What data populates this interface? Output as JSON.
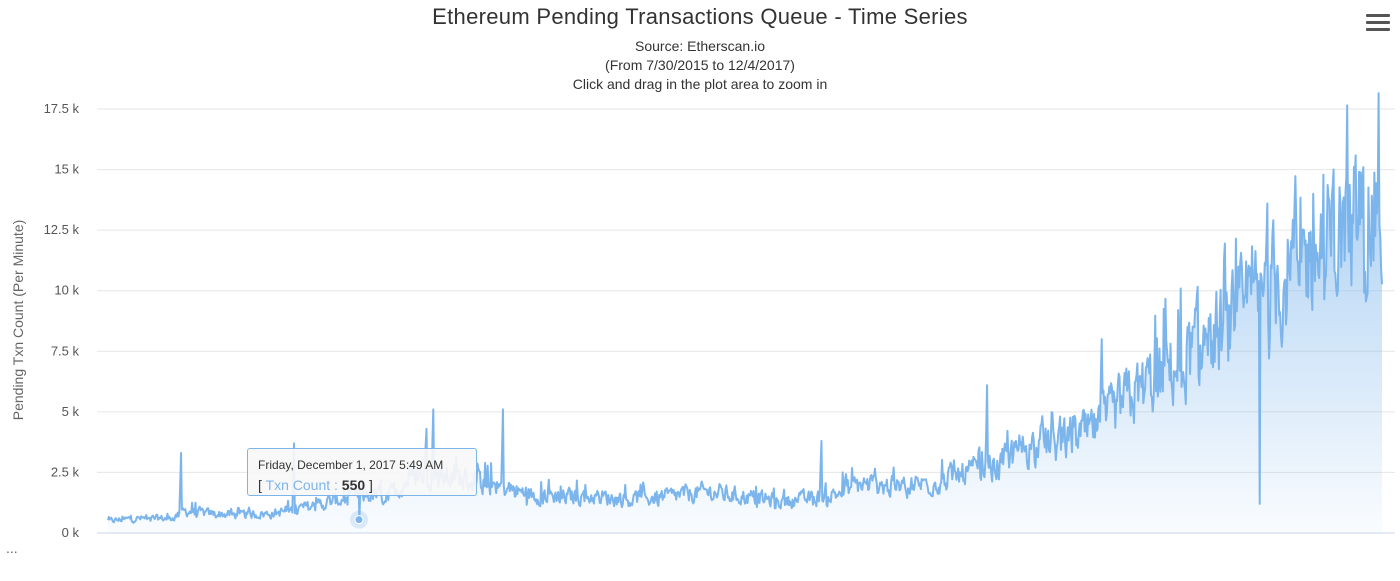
{
  "chart_data": {
    "type": "area",
    "title": "Ethereum Pending Transactions Queue - Time Series",
    "subtitles": [
      "Source: Etherscan.io",
      "(From 7/30/2015 to 12/4/2017)",
      "Click and drag in the plot area to zoom in"
    ],
    "ylabel": "Pending Txn Count (Per Minute)",
    "xlabel": "",
    "ylim": [
      0,
      17500
    ],
    "yticks": [
      {
        "value": 0,
        "label": "0 k"
      },
      {
        "value": 2500,
        "label": "2.5 k"
      },
      {
        "value": 5000,
        "label": "5 k"
      },
      {
        "value": 7500,
        "label": "7.5 k"
      },
      {
        "value": 10000,
        "label": "10 k"
      },
      {
        "value": 12500,
        "label": "12.5 k"
      },
      {
        "value": 15000,
        "label": "15 k"
      },
      {
        "value": 17500,
        "label": "17.5 k"
      }
    ],
    "grid": true,
    "series": [
      {
        "name": "Txn Count",
        "color": "#7cb5ec",
        "envelope": {
          "x": [
            0,
            0.02,
            0.05,
            0.06,
            0.08,
            0.1,
            0.13,
            0.16,
            0.2,
            0.22,
            0.24,
            0.25,
            0.27,
            0.3,
            0.33,
            0.36,
            0.38,
            0.41,
            0.44,
            0.47,
            0.5,
            0.53,
            0.55,
            0.57,
            0.59,
            0.62,
            0.65,
            0.67,
            0.7,
            0.72,
            0.74,
            0.76,
            0.78,
            0.8,
            0.82,
            0.84,
            0.86,
            0.88,
            0.9,
            0.92,
            0.94,
            0.96,
            0.98,
            1.0
          ],
          "values": [
            500,
            600,
            600,
            900,
            800,
            750,
            800,
            1100,
            1600,
            1500,
            2400,
            2500,
            2300,
            2000,
            1600,
            1500,
            1500,
            1400,
            1500,
            1700,
            1500,
            1300,
            1400,
            1600,
            2000,
            1900,
            2100,
            2400,
            2800,
            3600,
            3700,
            3900,
            4400,
            5500,
            6300,
            7000,
            7800,
            8400,
            9500,
            10500,
            11300,
            12000,
            13000,
            13300
          ]
        },
        "noise": 0.36,
        "spikes": [
          {
            "x": 0.057,
            "value": 3300
          },
          {
            "x": 0.146,
            "value": 3700
          },
          {
            "x": 0.25,
            "value": 4300
          },
          {
            "x": 0.255,
            "value": 5100
          },
          {
            "x": 0.31,
            "value": 5100
          },
          {
            "x": 0.56,
            "value": 3800
          },
          {
            "x": 0.69,
            "value": 6100
          },
          {
            "x": 0.78,
            "value": 8000
          },
          {
            "x": 0.91,
            "value": 13600
          },
          {
            "x": 0.985,
            "value": 15100
          }
        ],
        "dips": [
          {
            "x": 0.904,
            "value": 1200
          },
          {
            "x": 0.911,
            "value": 7200
          }
        ]
      }
    ],
    "tooltip": {
      "date": "Friday, December 1, 2017 5:49 AM",
      "open_bracket": "[",
      "label": "Txn Count :",
      "value": "550",
      "close_bracket": "]",
      "point_x": 0.197,
      "point_value": 550
    }
  },
  "menu": {
    "icon": "hamburger-menu-icon"
  },
  "footer": {
    "ellipsis": "..."
  }
}
